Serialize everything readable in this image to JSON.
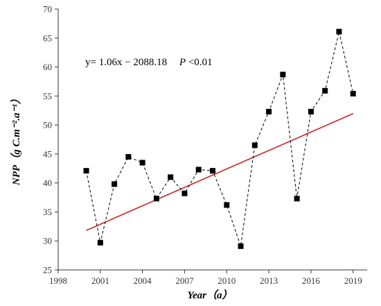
{
  "chart_data": {
    "type": "scatter",
    "title": "",
    "xlabel": "Year（a）",
    "ylabel": "NPP（g C.m⁻².a⁻¹）",
    "xlim": [
      1998,
      2020
    ],
    "ylim": [
      25,
      70
    ],
    "xticks": [
      1998,
      2001,
      2004,
      2007,
      2010,
      2013,
      2016,
      2019
    ],
    "yticks": [
      25,
      30,
      35,
      40,
      45,
      50,
      55,
      60,
      65,
      70
    ],
    "grid": false,
    "series": [
      {
        "marker": "square",
        "line_style": "dashed",
        "color": "#000000",
        "x": [
          2000,
          2001,
          2002,
          2003,
          2004,
          2005,
          2006,
          2007,
          2008,
          2009,
          2010,
          2011,
          2012,
          2013,
          2014,
          2015,
          2016,
          2017,
          2018,
          2019
        ],
        "y": [
          42.1,
          29.7,
          39.8,
          44.5,
          43.5,
          37.3,
          41.0,
          38.2,
          42.3,
          42.1,
          36.2,
          29.1,
          46.5,
          52.3,
          58.7,
          37.3,
          52.3,
          55.9,
          66.1,
          55.4
        ]
      }
    ],
    "trend_line": {
      "color": "#cc2222",
      "slope": 1.06,
      "intercept": -2088.18,
      "x_range": [
        2000,
        2019
      ]
    },
    "annotation": {
      "equation": "y= 1.06x − 2088.18",
      "significance_symbol": "P",
      "significance_value": "<0.01"
    }
  }
}
